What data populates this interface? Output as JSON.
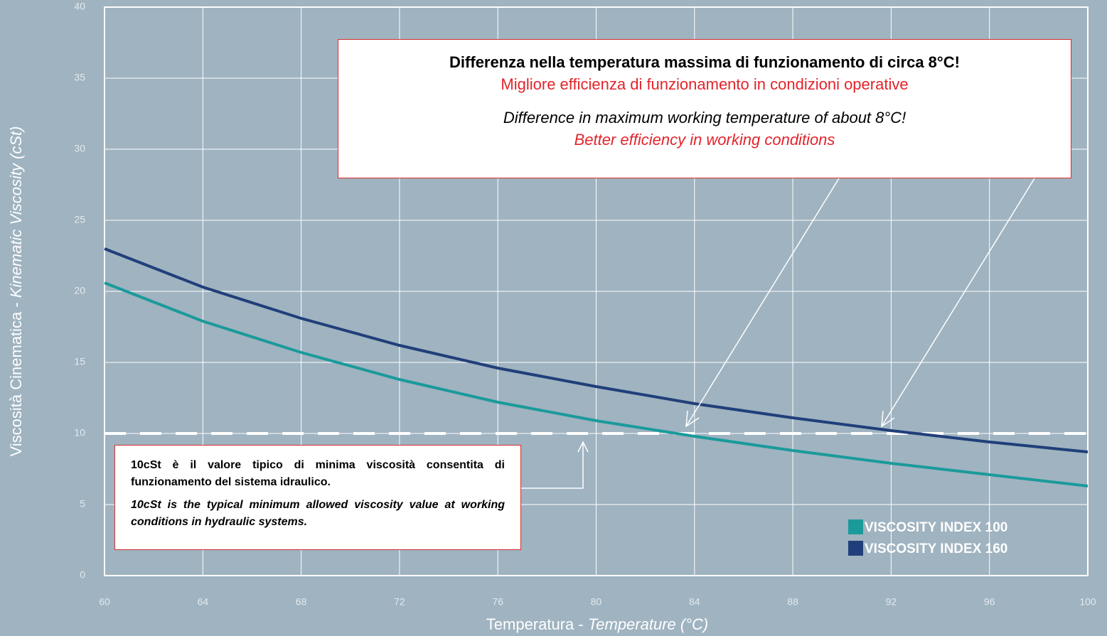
{
  "chart_data": {
    "type": "line",
    "x_label": {
      "main": "Temperatura -",
      "italic": "Temperature (°C)"
    },
    "y_label": {
      "main": "Viscosità Cinematica -",
      "italic": "Kinematic Viscosity (cSt)"
    },
    "x": [
      60,
      64,
      68,
      72,
      76,
      80,
      84,
      88,
      92,
      96,
      100
    ],
    "series": [
      {
        "name": "VISCOSITY INDEX 100",
        "color": "#1b9a9b",
        "values": [
          20.6,
          17.9,
          15.7,
          13.8,
          12.2,
          10.9,
          9.8,
          8.8,
          7.9,
          7.1,
          6.3
        ]
      },
      {
        "name": "VISCOSITY INDEX 160",
        "color": "#203f7a",
        "values": [
          23.0,
          20.3,
          18.1,
          16.2,
          14.6,
          13.3,
          12.1,
          11.1,
          10.2,
          9.4,
          8.7
        ]
      }
    ],
    "xlim": [
      60,
      100
    ],
    "xticks": [
      60,
      64,
      68,
      72,
      76,
      80,
      84,
      88,
      92,
      96,
      100
    ],
    "ylim": [
      0,
      40
    ],
    "yticks": [
      0,
      5,
      10,
      15,
      20,
      25,
      30,
      35,
      40
    ],
    "grid": true,
    "legend": "lower right",
    "reference_line": 10,
    "annotations": {
      "top": [
        "Differenza nella temperatura massima di funzionamento di circa 8°C!",
        "Migliore efficienza di funzionamento in condizioni operative",
        "Difference in maximum working temperature of about 8°C!",
        "Better efficiency in working conditions"
      ],
      "bottom": [
        "10cSt è il valore tipico di minima viscosità consentita di funzionamento del sistema idraulico.",
        "10cSt is the typical minimum allowed viscosity value at working conditions in hydraulic systems."
      ]
    }
  }
}
